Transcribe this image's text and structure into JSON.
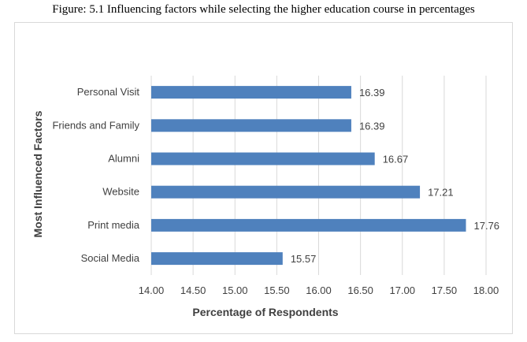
{
  "figure_caption": "Figure: 5.1 Influencing factors while selecting the higher education course in percentages",
  "colors": {
    "bar": "#4f81bd",
    "grid": "#d9d9d9",
    "text": "#404040"
  },
  "chart_data": {
    "type": "bar",
    "orientation": "horizontal",
    "title": "",
    "xlabel": "Percentage of Respondents",
    "ylabel": "Most Influenced Factors",
    "categories": [
      "Personal Visit",
      "Friends and Family",
      "Alumni",
      "Website",
      "Print media",
      "Social Media"
    ],
    "values": [
      16.39,
      16.39,
      16.67,
      17.21,
      17.76,
      15.57
    ],
    "value_labels": [
      "16.39",
      "16.39",
      "16.67",
      "17.21",
      "17.76",
      "15.57"
    ],
    "xlim": [
      14.0,
      18.0
    ],
    "xticks": [
      "14.00",
      "14.50",
      "15.00",
      "15.50",
      "16.00",
      "16.50",
      "17.00",
      "17.50",
      "18.00"
    ],
    "grid": "vertical",
    "legend": "none"
  }
}
